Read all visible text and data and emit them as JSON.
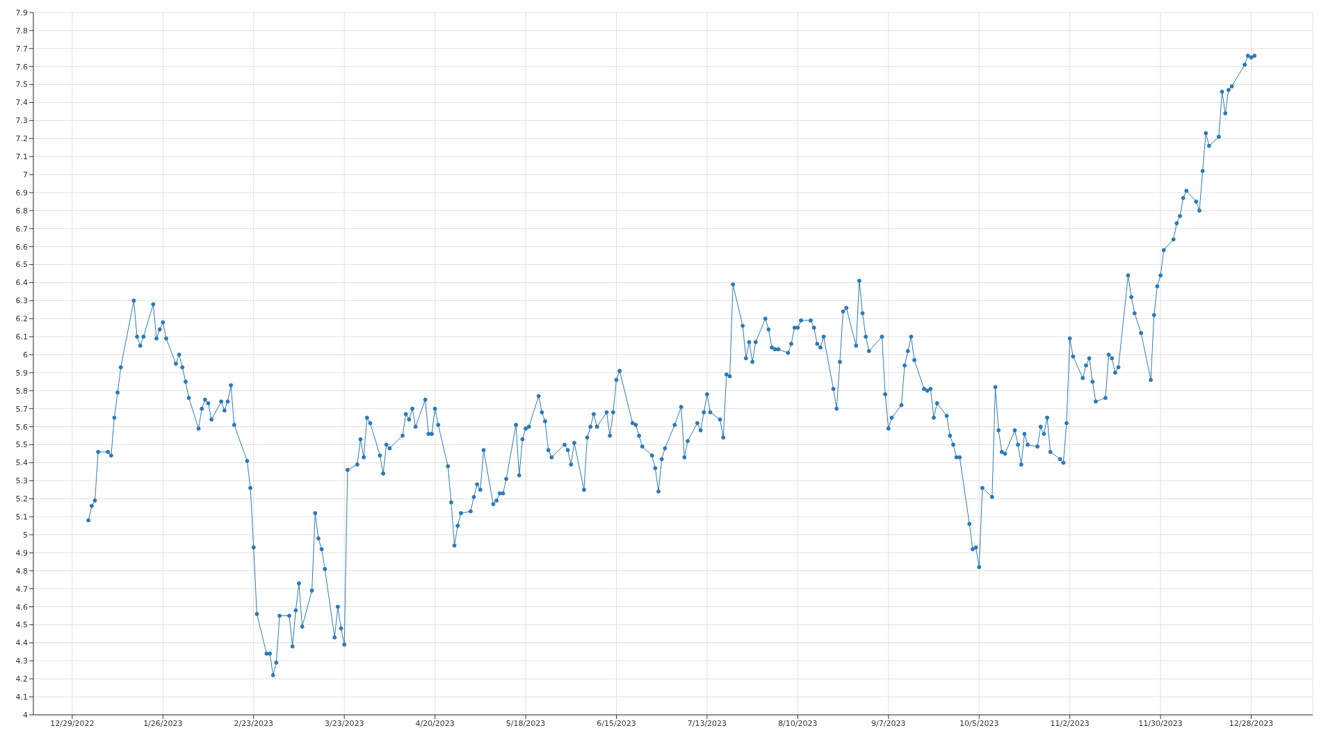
{
  "chart_data": {
    "type": "line",
    "xlim": [
      "2022-12-17",
      "2024-01-16"
    ],
    "xticks": [
      {
        "value": "2022-12-29",
        "label": "12/29/2022"
      },
      {
        "value": "2023-01-26",
        "label": "1/26/2023"
      },
      {
        "value": "2023-02-23",
        "label": "2/23/2023"
      },
      {
        "value": "2023-03-23",
        "label": "3/23/2023"
      },
      {
        "value": "2023-04-20",
        "label": "4/20/2023"
      },
      {
        "value": "2023-05-18",
        "label": "5/18/2023"
      },
      {
        "value": "2023-06-15",
        "label": "6/15/2023"
      },
      {
        "value": "2023-07-13",
        "label": "7/13/2023"
      },
      {
        "value": "2023-08-10",
        "label": "8/10/2023"
      },
      {
        "value": "2023-09-07",
        "label": "9/7/2023"
      },
      {
        "value": "2023-10-05",
        "label": "10/5/2023"
      },
      {
        "value": "2023-11-02",
        "label": "11/2/2023"
      },
      {
        "value": "2023-11-30",
        "label": "11/30/2023"
      },
      {
        "value": "2023-12-28",
        "label": "12/28/2023"
      }
    ],
    "ylim": [
      4,
      7.9
    ],
    "yticks": [
      4,
      4.1,
      4.2,
      4.3,
      4.4,
      4.5,
      4.6,
      4.7,
      4.8,
      4.9,
      5,
      5.1,
      5.2,
      5.3,
      5.4,
      5.5,
      5.6,
      5.7,
      5.8,
      5.9,
      6,
      6.1,
      6.2,
      6.3,
      6.4,
      6.5,
      6.6,
      6.7,
      6.8,
      6.9,
      7,
      7.1,
      7.2,
      7.3,
      7.4,
      7.5,
      7.6,
      7.7,
      7.8,
      7.9
    ],
    "grid": true,
    "marker": "circle",
    "line_style": "solid",
    "x": [
      "2023-01-03",
      "2023-01-04",
      "2023-01-05",
      "2023-01-06",
      "2023-01-09",
      "2023-01-10",
      "2023-01-11",
      "2023-01-12",
      "2023-01-13",
      "2023-01-17",
      "2023-01-18",
      "2023-01-19",
      "2023-01-20",
      "2023-01-23",
      "2023-01-24",
      "2023-01-25",
      "2023-01-26",
      "2023-01-27",
      "2023-01-30",
      "2023-01-31",
      "2023-02-01",
      "2023-02-02",
      "2023-02-03",
      "2023-02-06",
      "2023-02-07",
      "2023-02-08",
      "2023-02-09",
      "2023-02-10",
      "2023-02-13",
      "2023-02-14",
      "2023-02-15",
      "2023-02-16",
      "2023-02-17",
      "2023-02-21",
      "2023-02-22",
      "2023-02-23",
      "2023-02-24",
      "2023-02-27",
      "2023-02-28",
      "2023-03-01",
      "2023-03-02",
      "2023-03-03",
      "2023-03-06",
      "2023-03-07",
      "2023-03-08",
      "2023-03-09",
      "2023-03-10",
      "2023-03-13",
      "2023-03-14",
      "2023-03-15",
      "2023-03-16",
      "2023-03-17",
      "2023-03-20",
      "2023-03-21",
      "2023-03-22",
      "2023-03-23",
      "2023-03-24",
      "2023-03-27",
      "2023-03-28",
      "2023-03-29",
      "2023-03-30",
      "2023-03-31",
      "2023-04-03",
      "2023-04-04",
      "2023-04-05",
      "2023-04-06",
      "2023-04-10",
      "2023-04-11",
      "2023-04-12",
      "2023-04-13",
      "2023-04-14",
      "2023-04-17",
      "2023-04-18",
      "2023-04-19",
      "2023-04-20",
      "2023-04-21",
      "2023-04-24",
      "2023-04-25",
      "2023-04-26",
      "2023-04-27",
      "2023-04-28",
      "2023-05-01",
      "2023-05-02",
      "2023-05-03",
      "2023-05-04",
      "2023-05-05",
      "2023-05-08",
      "2023-05-09",
      "2023-05-10",
      "2023-05-11",
      "2023-05-12",
      "2023-05-15",
      "2023-05-16",
      "2023-05-17",
      "2023-05-18",
      "2023-05-19",
      "2023-05-22",
      "2023-05-23",
      "2023-05-24",
      "2023-05-25",
      "2023-05-26",
      "2023-05-30",
      "2023-05-31",
      "2023-06-01",
      "2023-06-02",
      "2023-06-05",
      "2023-06-06",
      "2023-06-07",
      "2023-06-08",
      "2023-06-09",
      "2023-06-12",
      "2023-06-13",
      "2023-06-14",
      "2023-06-15",
      "2023-06-16",
      "2023-06-20",
      "2023-06-21",
      "2023-06-22",
      "2023-06-23",
      "2023-06-26",
      "2023-06-27",
      "2023-06-28",
      "2023-06-29",
      "2023-06-30",
      "2023-07-03",
      "2023-07-05",
      "2023-07-06",
      "2023-07-07",
      "2023-07-10",
      "2023-07-11",
      "2023-07-12",
      "2023-07-13",
      "2023-07-14",
      "2023-07-17",
      "2023-07-18",
      "2023-07-19",
      "2023-07-20",
      "2023-07-21",
      "2023-07-24",
      "2023-07-25",
      "2023-07-26",
      "2023-07-27",
      "2023-07-28",
      "2023-07-31",
      "2023-08-01",
      "2023-08-02",
      "2023-08-03",
      "2023-08-04",
      "2023-08-07",
      "2023-08-08",
      "2023-08-09",
      "2023-08-10",
      "2023-08-11",
      "2023-08-14",
      "2023-08-15",
      "2023-08-16",
      "2023-08-17",
      "2023-08-18",
      "2023-08-21",
      "2023-08-22",
      "2023-08-23",
      "2023-08-24",
      "2023-08-25",
      "2023-08-28",
      "2023-08-29",
      "2023-08-30",
      "2023-08-31",
      "2023-09-01",
      "2023-09-05",
      "2023-09-06",
      "2023-09-07",
      "2023-09-08",
      "2023-09-11",
      "2023-09-12",
      "2023-09-13",
      "2023-09-14",
      "2023-09-15",
      "2023-09-18",
      "2023-09-19",
      "2023-09-20",
      "2023-09-21",
      "2023-09-22",
      "2023-09-25",
      "2023-09-26",
      "2023-09-27",
      "2023-09-28",
      "2023-09-29",
      "2023-10-02",
      "2023-10-03",
      "2023-10-04",
      "2023-10-05",
      "2023-10-06",
      "2023-10-09",
      "2023-10-10",
      "2023-10-11",
      "2023-10-12",
      "2023-10-13",
      "2023-10-16",
      "2023-10-17",
      "2023-10-18",
      "2023-10-19",
      "2023-10-20",
      "2023-10-23",
      "2023-10-24",
      "2023-10-25",
      "2023-10-26",
      "2023-10-27",
      "2023-10-30",
      "2023-10-31",
      "2023-11-01",
      "2023-11-02",
      "2023-11-03",
      "2023-11-06",
      "2023-11-07",
      "2023-11-08",
      "2023-11-09",
      "2023-11-10",
      "2023-11-13",
      "2023-11-14",
      "2023-11-15",
      "2023-11-16",
      "2023-11-17",
      "2023-11-20",
      "2023-11-21",
      "2023-11-22",
      "2023-11-24",
      "2023-11-27",
      "2023-11-28",
      "2023-11-29",
      "2023-11-30",
      "2023-12-01",
      "2023-12-04",
      "2023-12-05",
      "2023-12-06",
      "2023-12-07",
      "2023-12-08",
      "2023-12-11",
      "2023-12-12",
      "2023-12-13",
      "2023-12-14",
      "2023-12-15",
      "2023-12-18",
      "2023-12-19",
      "2023-12-20",
      "2023-12-21",
      "2023-12-22",
      "2023-12-26",
      "2023-12-27",
      "2023-12-28",
      "2023-12-29"
    ],
    "series": [
      {
        "color": "#2a7ab8",
        "values": [
          5.08,
          5.16,
          5.19,
          5.46,
          5.46,
          5.44,
          5.65,
          5.79,
          5.93,
          6.3,
          6.1,
          6.05,
          6.1,
          6.28,
          6.09,
          6.14,
          6.18,
          6.09,
          5.95,
          6.0,
          5.93,
          5.85,
          5.76,
          5.59,
          5.7,
          5.75,
          5.73,
          5.64,
          5.74,
          5.69,
          5.74,
          5.83,
          5.61,
          5.41,
          5.26,
          4.93,
          4.56,
          4.34,
          4.34,
          4.22,
          4.29,
          4.55,
          4.55,
          4.38,
          4.58,
          4.73,
          4.49,
          4.69,
          5.12,
          4.98,
          4.92,
          4.81,
          4.43,
          4.6,
          4.48,
          4.39,
          5.36,
          5.39,
          5.53,
          5.43,
          5.65,
          5.62,
          5.44,
          5.34,
          5.5,
          5.48,
          5.55,
          5.67,
          5.64,
          5.7,
          5.6,
          5.75,
          5.56,
          5.56,
          5.7,
          5.61,
          5.38,
          5.18,
          4.94,
          5.05,
          5.12,
          5.13,
          5.21,
          5.28,
          5.25,
          5.47,
          5.17,
          5.19,
          5.23,
          5.23,
          5.31,
          5.61,
          5.33,
          5.53,
          5.59,
          5.6,
          5.77,
          5.68,
          5.63,
          5.47,
          5.43,
          5.5,
          5.47,
          5.39,
          5.51,
          5.25,
          5.54,
          5.6,
          5.67,
          5.6,
          5.68,
          5.55,
          5.68,
          5.86,
          5.91,
          5.62,
          5.61,
          5.55,
          5.49,
          5.44,
          5.37,
          5.24,
          5.42,
          5.48,
          5.61,
          5.71,
          5.43,
          5.52,
          5.62,
          5.58,
          5.68,
          5.78,
          5.68,
          5.64,
          5.54,
          5.89,
          5.88,
          6.39,
          6.16,
          5.98,
          6.07,
          5.96,
          6.07,
          6.2,
          6.14,
          6.04,
          6.03,
          6.03,
          6.01,
          6.06,
          6.15,
          6.15,
          6.19,
          6.19,
          6.15,
          6.06,
          6.04,
          6.1,
          5.81,
          5.7,
          5.96,
          6.24,
          6.26,
          6.05,
          6.41,
          6.23,
          6.1,
          6.02,
          6.1,
          5.78,
          5.59,
          5.65,
          5.72,
          5.94,
          6.02,
          6.1,
          5.97,
          5.81,
          5.8,
          5.81,
          5.65,
          5.73,
          5.66,
          5.55,
          5.5,
          5.43,
          5.43,
          5.06,
          4.92,
          4.93,
          4.82,
          5.26,
          5.21,
          5.82,
          5.58,
          5.46,
          5.45,
          5.58,
          5.5,
          5.39,
          5.56,
          5.5,
          5.49,
          5.6,
          5.56,
          5.65,
          5.46,
          5.42,
          5.4,
          5.62,
          6.09,
          5.99,
          5.87,
          5.94,
          5.98,
          5.85,
          5.74,
          5.76,
          6.0,
          5.98,
          5.9,
          5.93,
          6.44,
          6.32,
          6.23,
          6.12,
          5.86,
          6.22,
          6.38,
          6.44,
          6.58,
          6.64,
          6.73,
          6.77,
          6.87,
          6.91,
          6.85,
          6.8,
          7.02,
          7.23,
          7.16,
          7.21,
          7.46,
          7.34,
          7.47,
          7.49,
          7.61,
          7.66,
          7.65,
          7.66
        ]
      }
    ]
  }
}
